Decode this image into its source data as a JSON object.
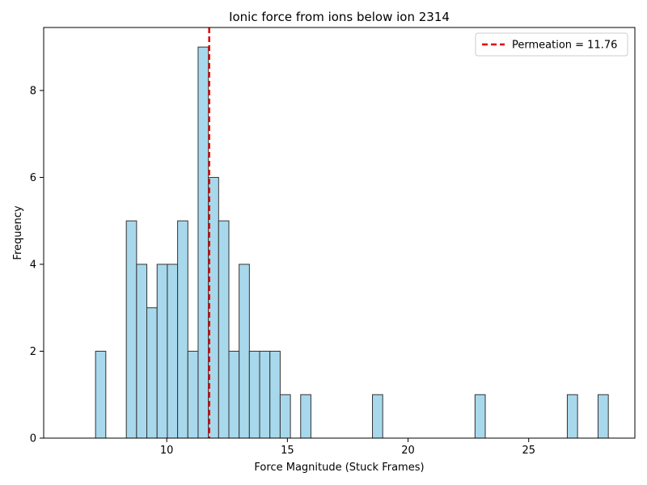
{
  "chart_data": {
    "type": "bar",
    "title": "Ionic force from ions below ion 2314",
    "xlabel": "Force Magnitude (Stuck Frames)",
    "ylabel": "Frequency",
    "xlim": [
      4.9,
      29.4
    ],
    "ylim": [
      0,
      9.45
    ],
    "xticks": [
      10,
      15,
      20,
      25
    ],
    "yticks": [
      0,
      2,
      4,
      6,
      8
    ],
    "bin_width": 0.425,
    "bins": [
      {
        "left": 7.05,
        "count": 2
      },
      {
        "left": 8.325,
        "count": 5
      },
      {
        "left": 8.75,
        "count": 4
      },
      {
        "left": 9.175,
        "count": 3
      },
      {
        "left": 9.6,
        "count": 4
      },
      {
        "left": 10.025,
        "count": 4
      },
      {
        "left": 10.45,
        "count": 5
      },
      {
        "left": 10.875,
        "count": 2
      },
      {
        "left": 11.3,
        "count": 9
      },
      {
        "left": 11.725,
        "count": 6
      },
      {
        "left": 12.15,
        "count": 5
      },
      {
        "left": 12.575,
        "count": 2
      },
      {
        "left": 13.0,
        "count": 4
      },
      {
        "left": 13.425,
        "count": 2
      },
      {
        "left": 13.85,
        "count": 2
      },
      {
        "left": 14.275,
        "count": 2
      },
      {
        "left": 14.7,
        "count": 1
      },
      {
        "left": 15.55,
        "count": 1
      },
      {
        "left": 18.525,
        "count": 1
      },
      {
        "left": 22.775,
        "count": 1
      },
      {
        "left": 26.6,
        "count": 1
      },
      {
        "left": 27.875,
        "count": 1
      }
    ],
    "bar_fill": "#a8d8ec",
    "bar_edge": "#333333",
    "vline": {
      "x": 11.76,
      "color": "#e00000",
      "style": "dashed",
      "label": "Permeation = 11.76"
    },
    "legend_position": "top-right",
    "grid": false
  }
}
